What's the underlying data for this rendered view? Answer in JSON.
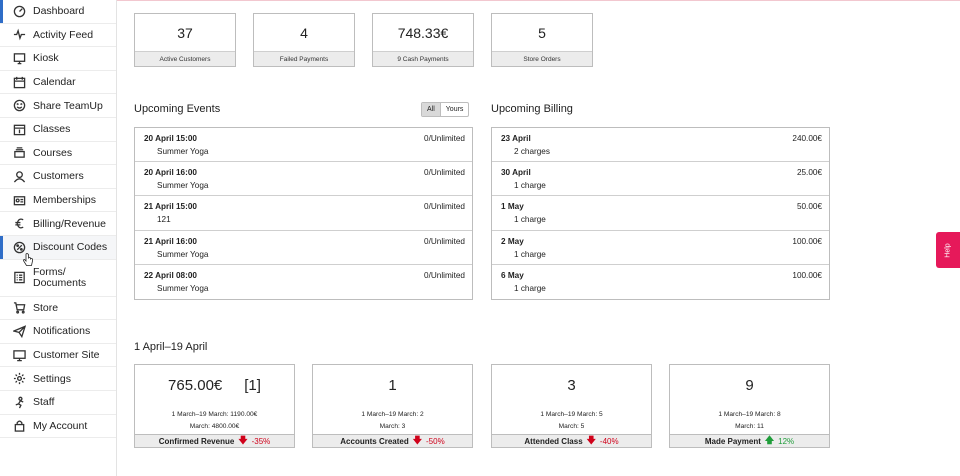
{
  "sidebar": {
    "items": [
      {
        "label": "Dashboard",
        "icon": "dashboard-icon"
      },
      {
        "label": "Activity Feed",
        "icon": "pulse-icon"
      },
      {
        "label": "Kiosk",
        "icon": "monitor-icon"
      },
      {
        "label": "Calendar",
        "icon": "calendar-icon"
      },
      {
        "label": "Share TeamUp",
        "icon": "smiley-icon"
      },
      {
        "label": "Classes",
        "icon": "class-calendar-icon"
      },
      {
        "label": "Courses",
        "icon": "stack-icon"
      },
      {
        "label": "Customers",
        "icon": "customers-icon"
      },
      {
        "label": "Memberships",
        "icon": "membership-card-icon"
      },
      {
        "label": "Billing/Revenue",
        "icon": "euro-icon"
      },
      {
        "label": "Discount Codes",
        "icon": "discount-icon"
      },
      {
        "label": "Forms/ Documents",
        "icon": "forms-icon"
      },
      {
        "label": "Store",
        "icon": "cart-icon"
      },
      {
        "label": "Notifications",
        "icon": "paper-plane-icon"
      },
      {
        "label": "Customer Site",
        "icon": "site-monitor-icon"
      },
      {
        "label": "Settings",
        "icon": "gear-icon"
      },
      {
        "label": "Staff",
        "icon": "staff-icon"
      },
      {
        "label": "My Account",
        "icon": "lock-icon"
      }
    ]
  },
  "stats": [
    {
      "value": "37",
      "label": "Active Customers"
    },
    {
      "value": "4",
      "label": "Failed Payments"
    },
    {
      "value": "748.33€",
      "label": "9 Cash Payments"
    },
    {
      "value": "5",
      "label": "Store Orders"
    }
  ],
  "events": {
    "title": "Upcoming Events",
    "toggle": {
      "all": "All",
      "yours": "Yours"
    },
    "rows": [
      {
        "date": "20 April 15:00",
        "name": "Summer Yoga",
        "capacity": "0/Unlimited"
      },
      {
        "date": "20 April 16:00",
        "name": "Summer Yoga",
        "capacity": "0/Unlimited"
      },
      {
        "date": "21 April 15:00",
        "name": "121",
        "capacity": "0/Unlimited"
      },
      {
        "date": "21 April 16:00",
        "name": "Summer Yoga",
        "capacity": "0/Unlimited"
      },
      {
        "date": "22 April 08:00",
        "name": "Summer Yoga",
        "capacity": "0/Unlimited"
      }
    ]
  },
  "billing": {
    "title": "Upcoming Billing",
    "rows": [
      {
        "date": "23 April",
        "charges": "2 charges",
        "amount": "240.00€"
      },
      {
        "date": "30 April",
        "charges": "1 charge",
        "amount": "25.00€"
      },
      {
        "date": "1 May",
        "charges": "1 charge",
        "amount": "50.00€"
      },
      {
        "date": "2 May",
        "charges": "1 charge",
        "amount": "100.00€"
      },
      {
        "date": "6 May",
        "charges": "1 charge",
        "amount": "100.00€"
      }
    ]
  },
  "period": {
    "title": "1 April–19 April",
    "cards": [
      {
        "value": "765.00€",
        "extra": "[1]",
        "compare1": "1 March–19 March: 1190.00€",
        "compare2": "March: 4800.00€",
        "label": "Confirmed Revenue",
        "arrow": "🡇",
        "pct": "-35%",
        "dir": "down"
      },
      {
        "value": "1",
        "extra": "",
        "compare1": "1 March–19 March: 2",
        "compare2": "March: 3",
        "label": "Accounts Created",
        "arrow": "🡇",
        "pct": "-50%",
        "dir": "down"
      },
      {
        "value": "3",
        "extra": "",
        "compare1": "1 March–19 March: 5",
        "compare2": "March: 5",
        "label": "Attended Class",
        "arrow": "🡇",
        "pct": "-40%",
        "dir": "down"
      },
      {
        "value": "9",
        "extra": "",
        "compare1": "1 March–19 March: 8",
        "compare2": "March: 11",
        "label": "Made Payment",
        "arrow": "🡅",
        "pct": "12%",
        "dir": "up"
      }
    ]
  },
  "help": {
    "label": "Help"
  },
  "colors": {
    "accent": "#2f6dc7",
    "help": "#e6195a",
    "down": "#d0021b",
    "up": "#1f9d3a"
  }
}
